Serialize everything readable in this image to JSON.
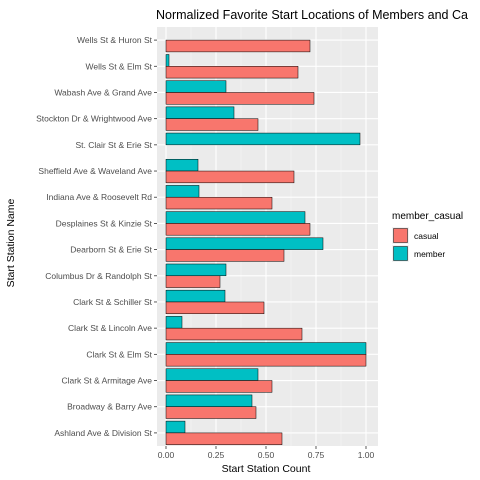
{
  "chart_data": {
    "type": "bar",
    "orientation": "horizontal",
    "title": "Normalized Favorite Start Locations of Members and Ca",
    "xlabel": "Start Station Count",
    "ylabel": "Start Station Name",
    "xlim": [
      0,
      1.0
    ],
    "x_ticks": [
      "0.00",
      "0.25",
      "0.50",
      "0.75",
      "1.00"
    ],
    "x_tick_values": [
      0,
      0.25,
      0.5,
      0.75,
      1.0
    ],
    "grid": true,
    "legend": {
      "title": "member_casual",
      "position": "right"
    },
    "categories": [
      "Wells St & Huron St",
      "Wells St & Elm St",
      "Wabash Ave & Grand Ave",
      "Stockton Dr & Wrightwood Ave",
      "St. Clair St & Erie St",
      "Sheffield Ave & Waveland Ave",
      "Indiana Ave & Roosevelt Rd",
      "Desplaines St & Kinzie St",
      "Dearborn St & Erie St",
      "Columbus Dr & Randolph St",
      "Clark St & Schiller St",
      "Clark St & Lincoln Ave",
      "Clark St & Elm St",
      "Clark St & Armitage Ave",
      "Broadway & Barry Ave",
      "Ashland Ave & Division St"
    ],
    "series": [
      {
        "name": "casual",
        "color": "#F8766D",
        "values": [
          0.72,
          0.66,
          0.74,
          0.46,
          0.0,
          0.64,
          0.53,
          0.72,
          0.59,
          0.27,
          0.49,
          0.68,
          1.0,
          0.53,
          0.45,
          0.58
        ]
      },
      {
        "name": "member",
        "color": "#00BFC4",
        "values": [
          0.0,
          0.015,
          0.3,
          0.34,
          0.97,
          0.16,
          0.165,
          0.695,
          0.785,
          0.3,
          0.295,
          0.08,
          1.0,
          0.46,
          0.43,
          0.095
        ]
      }
    ]
  }
}
